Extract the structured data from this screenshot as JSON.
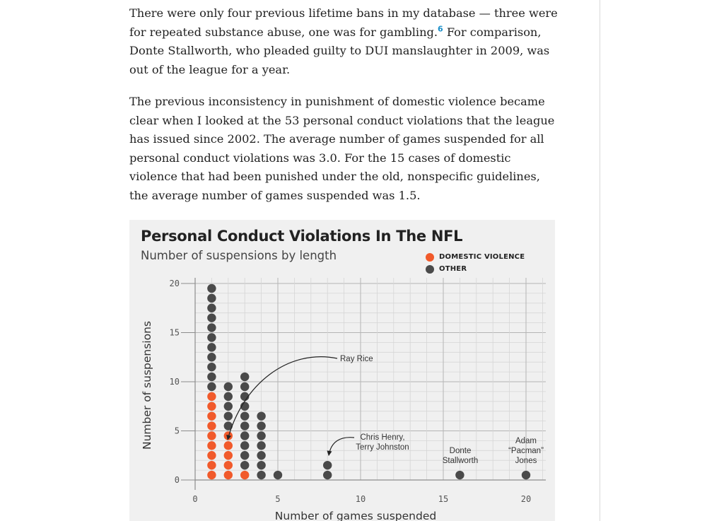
{
  "article": {
    "p1": {
      "before": "There were only four previous lifetime bans in my database — three were for repeated substance abuse, one was for gambling.",
      "footnote": "6",
      "after": " For comparison, Donte Stallworth, who pleaded guilty to DUI manslaughter in 2009, was out of the league for a year."
    },
    "p2": "The previous inconsistency in punishment of domestic violence became clear when I looked at the 53 personal conduct violations that the league has issued since 2002. The average number of games suspended for all personal conduct violations was 3.0. For the 15 cases of domestic violence that had been punished under the old, nonspecific guidelines, the average number of games suspended was 1.5."
  },
  "colors": {
    "domestic": "#f15a2b",
    "other": "#4a4a4a",
    "panel": "#f0f0f0",
    "footnote": "#1a8fc9"
  },
  "chart_data": {
    "type": "scatter",
    "subtype": "dot-column",
    "title": "Personal Conduct Violations In The NFL",
    "subtitle": "Number of suspensions by length",
    "xlabel": "Number of games suspended",
    "ylabel": "Number of suspensions",
    "xlim": [
      0,
      21
    ],
    "ylim": [
      0,
      20
    ],
    "xticks": [
      0,
      5,
      10,
      15,
      20
    ],
    "yticks": [
      0,
      5,
      10,
      15,
      20
    ],
    "grid": true,
    "legend_position": "top-right",
    "legend": [
      "DOMESTIC VIOLENCE",
      "OTHER"
    ],
    "series": [
      {
        "name": "DOMESTIC VIOLENCE",
        "x": [
          1,
          2,
          3
        ],
        "counts": [
          9,
          5,
          1
        ]
      },
      {
        "name": "OTHER",
        "x": [
          1,
          2,
          3,
          4,
          5,
          8,
          16,
          20
        ],
        "counts": [
          11,
          5,
          10,
          7,
          1,
          2,
          1,
          1
        ]
      }
    ],
    "annotations": [
      {
        "text": "Ray Rice",
        "x": 2,
        "y": 5
      },
      {
        "text": "Chris Henry, Terry Johnston",
        "x": 8,
        "y": 2
      },
      {
        "text": "Donte Stallworth",
        "x": 16,
        "y": 1
      },
      {
        "text": "Adam “Pacman” Jones",
        "x": 20,
        "y": 1
      }
    ]
  }
}
